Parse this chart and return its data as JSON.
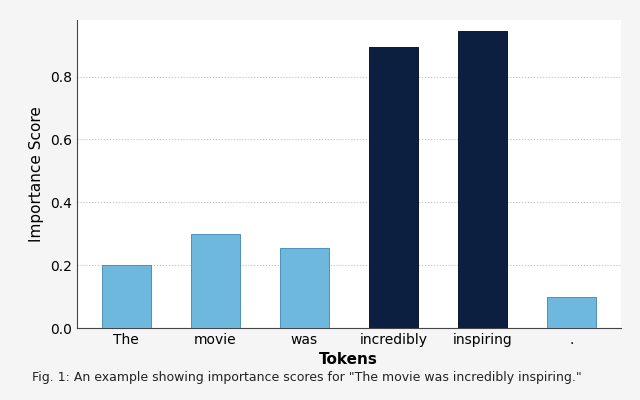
{
  "categories": [
    "The",
    "movie",
    "was",
    "incredibly",
    "inspiring",
    "."
  ],
  "values": [
    0.2,
    0.3,
    0.255,
    0.895,
    0.945,
    0.1
  ],
  "bar_colors": [
    "#6eb8de",
    "#6eb8de",
    "#6eb8de",
    "#0c1f40",
    "#0c1f40",
    "#6eb8de"
  ],
  "bar_edgecolors": [
    "#5090bb",
    "#5090bb",
    "#5090bb",
    "#0a1830",
    "#0a1830",
    "#5090bb"
  ],
  "xlabel": "Tokens",
  "ylabel": "Importance Score",
  "ylim": [
    0.0,
    0.98
  ],
  "yticks": [
    0.0,
    0.2,
    0.4,
    0.6,
    0.8
  ],
  "grid_color": "#c0c0c0",
  "grid_linestyle": ":",
  "background_color": "#f5f5f5",
  "plot_bg_color": "#ffffff",
  "tick_fontsize": 10,
  "label_fontsize": 11,
  "bar_width": 0.55,
  "caption": "Fig. 1: An example showing importance scores for \"The movie was incredibly inspiring.\"",
  "caption_fontsize": 9
}
